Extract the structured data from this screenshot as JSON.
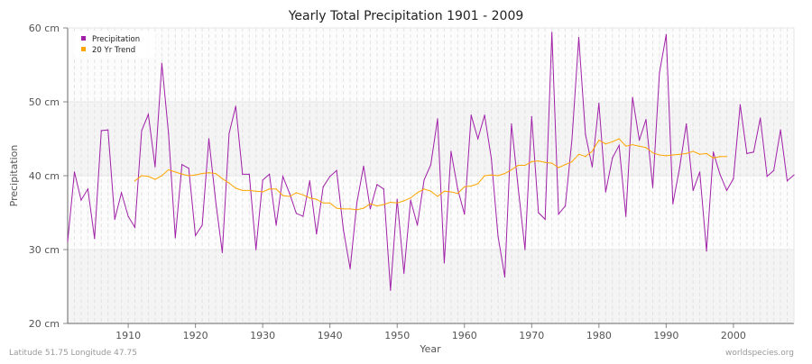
{
  "chart_data": {
    "type": "line",
    "title": "Yearly Total Precipitation 1901 - 2009",
    "xlabel": "Year",
    "ylabel": "Precipitation",
    "xlim": [
      1901,
      2009
    ],
    "ylim": [
      20,
      60
    ],
    "yticks": [
      20,
      30,
      40,
      50,
      60
    ],
    "ytick_labels": [
      "20 cm",
      "30 cm",
      "40 cm",
      "50 cm",
      "60 cm"
    ],
    "xticks": [
      1910,
      1920,
      1930,
      1940,
      1950,
      1960,
      1970,
      1980,
      1990,
      2000
    ],
    "xtick_labels": [
      "1910",
      "1920",
      "1930",
      "1940",
      "1950",
      "1960",
      "1970",
      "1980",
      "1990",
      "2000"
    ],
    "grid": true,
    "legend_position": "top-left",
    "series": [
      {
        "name": "Precipitation",
        "color": "#a020a8",
        "start_year": 1901,
        "values": [
          31.1,
          40.5,
          36.7,
          38.2,
          31.5,
          46.1,
          46.2,
          34.1,
          37.7,
          34.5,
          33.0,
          46.1,
          48.3,
          41.2,
          55.2,
          45.7,
          31.6,
          41.5,
          41.0,
          31.9,
          33.3,
          45.0,
          36.6,
          29.6,
          45.7,
          49.4,
          40.2,
          40.2,
          30.0,
          39.4,
          40.2,
          33.3,
          39.9,
          37.6,
          34.9,
          34.5,
          39.3,
          32.1,
          38.5,
          39.9,
          40.7,
          32.7,
          27.4,
          36.3,
          41.3,
          35.5,
          38.8,
          38.2,
          24.5,
          36.8,
          26.8,
          36.7,
          33.3,
          39.4,
          41.5,
          47.7,
          28.2,
          43.3,
          38.2,
          34.8,
          48.2,
          45.0,
          48.2,
          42.3,
          31.8,
          26.3,
          47.0,
          38.3,
          30.0,
          48.0,
          35.0,
          34.1,
          59.4,
          34.8,
          35.9,
          45.0,
          58.7,
          45.6,
          41.2,
          49.8,
          37.8,
          42.4,
          44.1,
          34.5,
          50.6,
          44.8,
          47.6,
          38.4,
          53.9,
          59.1,
          36.2,
          41.1,
          47.0,
          38.0,
          40.5,
          29.8,
          43.2,
          40.2,
          38.0,
          39.6,
          49.6,
          43.0,
          43.2,
          47.8,
          39.9,
          40.7,
          46.2,
          39.3,
          40.1
        ]
      },
      {
        "name": "20 Yr Trend",
        "color": "#ffa500",
        "start_year": 1911,
        "values": [
          39.3,
          40.0,
          39.9,
          39.5,
          40.0,
          40.8,
          40.5,
          40.2,
          40.0,
          40.1,
          40.3,
          40.4,
          40.3,
          39.6,
          39.0,
          38.3,
          38.0,
          38.0,
          37.9,
          37.8,
          38.2,
          38.2,
          37.3,
          37.2,
          37.7,
          37.4,
          37.0,
          36.8,
          36.3,
          36.3,
          35.6,
          35.5,
          35.5,
          35.4,
          35.6,
          36.2,
          35.9,
          36.1,
          36.4,
          36.3,
          36.6,
          37.0,
          37.7,
          38.2,
          37.9,
          37.2,
          37.9,
          37.8,
          37.6,
          38.5,
          38.6,
          38.9,
          40.0,
          40.1,
          40.0,
          40.3,
          40.8,
          41.4,
          41.4,
          41.9,
          42.0,
          41.8,
          41.7,
          41.1,
          41.5,
          41.9,
          42.9,
          42.6,
          43.3,
          44.8,
          44.3,
          44.6,
          45.0,
          44.0,
          44.2,
          44.0,
          43.8,
          43.1,
          42.8,
          42.7,
          42.8,
          42.9,
          43.0,
          43.3,
          42.9,
          43.0,
          42.4,
          42.6,
          42.6
        ]
      }
    ]
  },
  "footer": {
    "location": "Latitude 51.75 Longitude 47.75",
    "source": "worldspecies.org"
  }
}
